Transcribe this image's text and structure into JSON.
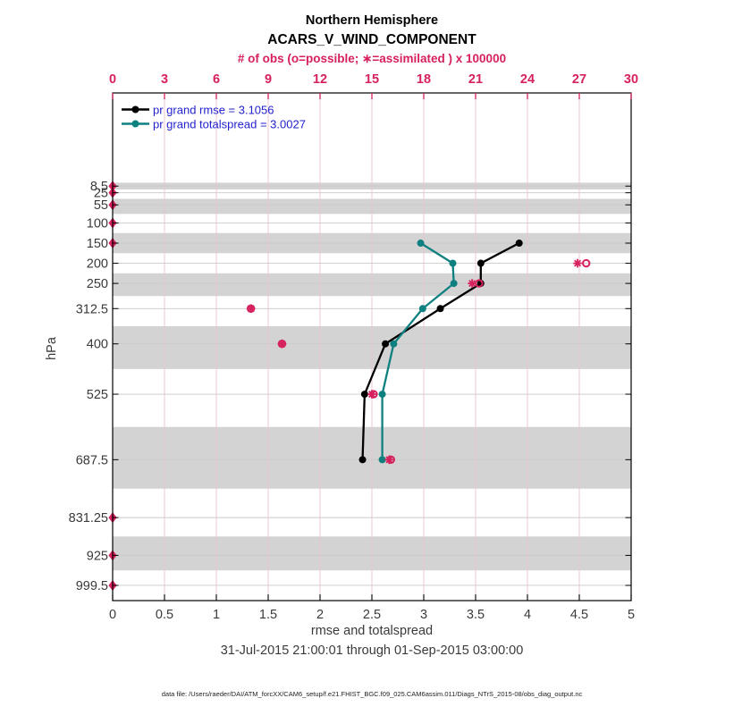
{
  "header": {
    "title_line1": "Northern Hemisphere",
    "title_line2": "ACARS_V_WIND_COMPONENT",
    "obs_axis_label": "# of obs (o=possible; ∗=assimilated ) x 100000"
  },
  "legend": {
    "rmse_label": "pr grand rmse = 3.1056",
    "totalspread_label": "pr grand totalspread = 3.0027",
    "rmse_value": 3.1056,
    "totalspread_value": 3.0027
  },
  "axes": {
    "x_label": "rmse and totalspread",
    "y_label": "hPa",
    "x_ticks": [
      0,
      0.5,
      1,
      1.5,
      2,
      2.5,
      3,
      3.5,
      4,
      4.5,
      5
    ],
    "x_tick_labels": [
      "0",
      "0.5",
      "1",
      "1.5",
      "2",
      "2.5",
      "3",
      "3.5",
      "4",
      "4.5",
      "5"
    ],
    "top_ticks": [
      0,
      3,
      6,
      9,
      12,
      15,
      18,
      21,
      24,
      27,
      30
    ],
    "top_tick_labels": [
      "0",
      "3",
      "6",
      "9",
      "12",
      "15",
      "18",
      "21",
      "24",
      "27",
      "30"
    ],
    "level_labels": [
      "8.5",
      "25",
      "55",
      "100",
      "150",
      "200",
      "250",
      "312.5",
      "400",
      "525",
      "687.5",
      "831.25",
      "925",
      "999.5"
    ]
  },
  "footer": {
    "date_range": "31-Jul-2015 21:00:01 through 01-Sep-2015 03:00:00",
    "data_file": "data file: /Users/raeder/DAI/ATM_forcXX/CAM6_setup/f.e21.FHIST_BGC.f09_025.CAM6assim.011/Diags_NTrS_2015-08/obs_diag_output.nc"
  },
  "colors": {
    "magenta": "#d6215c",
    "teal": "#0f8080",
    "black": "#000000",
    "legend_text": "#2222cc",
    "band_gray": "#d3d3d3",
    "hgrid": "#c9c9c9",
    "vgrid": "#eac3d0",
    "axis_text": "#3a3a3a",
    "footer_text": "#222222"
  },
  "chart_data": {
    "type": "line",
    "title": "Northern Hemisphere ACARS_V_WIND_COMPONENT",
    "xlabel": "rmse and totalspread",
    "ylabel": "hPa",
    "top_axis_label": "# of obs (o=possible; ∗=assimilated ) x 100000",
    "xlim": [
      0,
      5
    ],
    "obs_xlim": [
      0,
      30
    ],
    "y_axis_direction": "reversed (pressure increases downward)",
    "pressure_levels": [
      8.5,
      25,
      55,
      100,
      150,
      200,
      250,
      312.5,
      400,
      525,
      687.5,
      831.25,
      925,
      999.5
    ],
    "shaded_levels": [
      8.5,
      55,
      150,
      250,
      400,
      687.5,
      925
    ],
    "series": [
      {
        "name": "pr grand rmse",
        "color_key": "black",
        "levels": [
          150,
          200,
          250,
          312.5,
          400,
          525,
          687.5
        ],
        "values": [
          3.92,
          3.55,
          3.55,
          3.16,
          2.63,
          2.43,
          2.41
        ]
      },
      {
        "name": "pr grand totalspread",
        "color_key": "teal",
        "levels": [
          150,
          200,
          250,
          312.5,
          400,
          525,
          687.5
        ],
        "values": [
          2.97,
          3.28,
          3.29,
          2.99,
          2.71,
          2.6,
          2.6
        ]
      }
    ],
    "obs_counts_x100000": [
      {
        "level": 8.5,
        "possible": 0,
        "assimilated": 0
      },
      {
        "level": 25,
        "possible": 0,
        "assimilated": 0
      },
      {
        "level": 55,
        "possible": 0,
        "assimilated": 0
      },
      {
        "level": 100,
        "possible": 0,
        "assimilated": 0
      },
      {
        "level": 150,
        "possible": 0,
        "assimilated": 0
      },
      {
        "level": 200,
        "possible": 27.4,
        "assimilated": 26.9
      },
      {
        "level": 250,
        "possible": 21.2,
        "assimilated": 20.8
      },
      {
        "level": 312.5,
        "possible": 8.0,
        "assimilated": 8.0
      },
      {
        "level": 400,
        "possible": 9.8,
        "assimilated": 9.8
      },
      {
        "level": 525,
        "possible": 15.1,
        "assimilated": 15.0
      },
      {
        "level": 687.5,
        "possible": 16.1,
        "assimilated": 16.0
      },
      {
        "level": 831.25,
        "possible": 0,
        "assimilated": 0
      },
      {
        "level": 925,
        "possible": 0,
        "assimilated": 0
      },
      {
        "level": 999.5,
        "possible": 0,
        "assimilated": 0
      }
    ]
  }
}
